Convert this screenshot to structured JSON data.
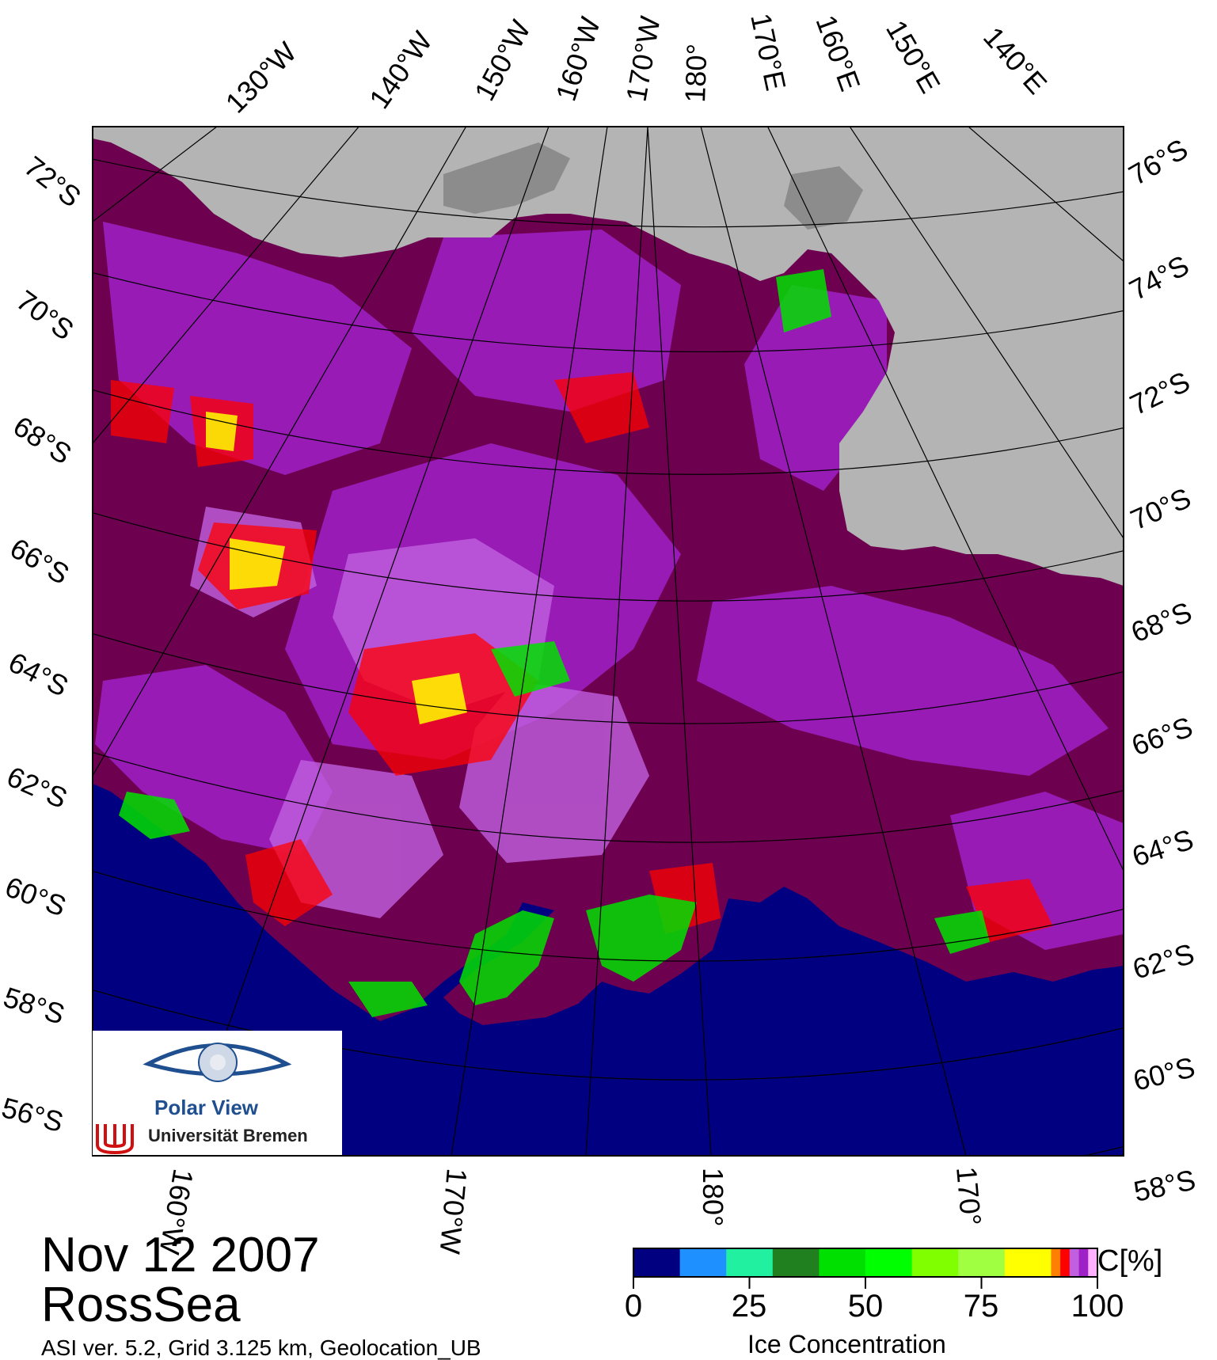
{
  "title": {
    "date": "Nov 12 2007",
    "region": "RossSea",
    "footnote": "ASI ver. 5.2,  Grid 3.125 km, Geolocation_UB"
  },
  "logo": {
    "title": "Polar View",
    "subtitle": "Universität Bremen"
  },
  "map": {
    "top_lon_labels": [
      "130°W",
      "140°W",
      "150°W",
      "160°W",
      "170°W",
      "180°",
      "170°E",
      "160°E",
      "150°E",
      "140°E"
    ],
    "left_lat_labels": [
      "72°S",
      "70°S",
      "68°S",
      "66°S",
      "64°S",
      "62°S",
      "60°S",
      "58°S",
      "56°S"
    ],
    "right_lat_labels": [
      "76°S",
      "74°S",
      "72°S",
      "70°S",
      "68°S",
      "66°S",
      "64°S",
      "62°S",
      "60°S",
      "58°S"
    ],
    "bottom_lon_labels": [
      "160°W",
      "170°W",
      "180°",
      "170°"
    ],
    "colors": {
      "open_water": "#000080",
      "land": "#b4b4b4",
      "land_shadow": "#8c8c8c",
      "dense_ice": "#6e0050",
      "high_ice": "#a020c8",
      "mid_ice": "#c060e0"
    }
  },
  "colorbar": {
    "title": "Ice Concentration",
    "unit": "C[%]",
    "ticks": [
      "0",
      "25",
      "50",
      "75",
      "100"
    ],
    "colors": [
      "#000080",
      "#1e90ff",
      "#20f0a0",
      "#208020",
      "#00e000",
      "#00ff00",
      "#80ff00",
      "#a0ff40",
      "#ffff00",
      "#ff8000",
      "#ff0000",
      "#c060e0",
      "#a020c8",
      "#ffb0ff"
    ]
  }
}
